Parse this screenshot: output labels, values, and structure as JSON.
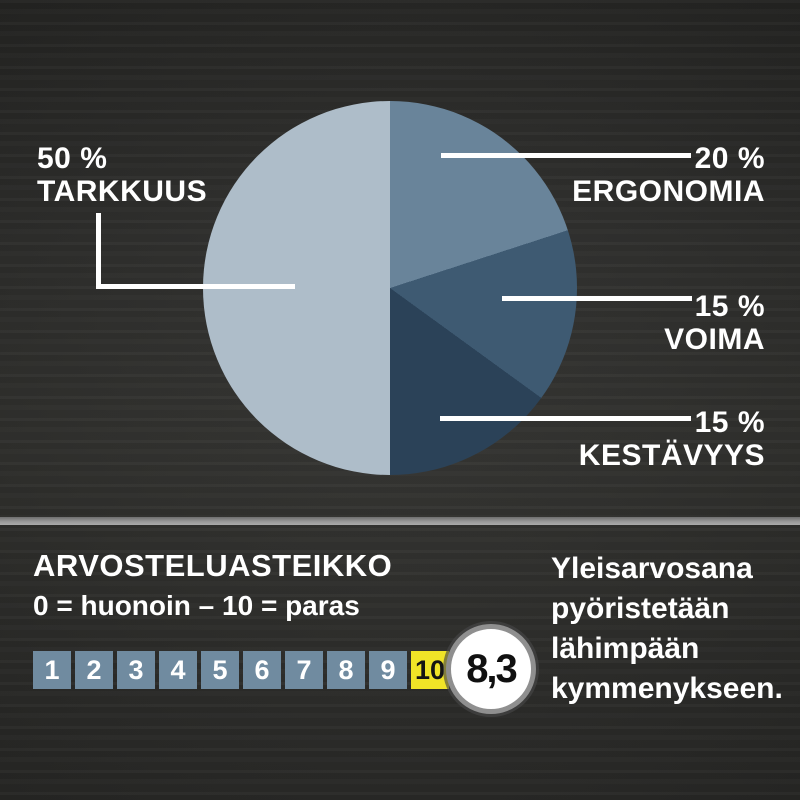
{
  "chart_data": {
    "type": "pie",
    "title": "",
    "start_angle_deg": 180,
    "direction": "clockwise",
    "slices": [
      {
        "label": "TARKKUUS",
        "value": 50,
        "display": "50 %",
        "color": "#aebdc9"
      },
      {
        "label": "ERGONOMIA",
        "value": 20,
        "display": "20 %",
        "color": "#69849a"
      },
      {
        "label": "VOIMA",
        "value": 15,
        "display": "15 %",
        "color": "#3e5a72"
      },
      {
        "label": "KESTÄVYYS",
        "value": 15,
        "display": "15 %",
        "color": "#2b4258"
      }
    ],
    "legend_position": "callout-labels"
  },
  "rating": {
    "heading": "ARVOSTELUASTEIKKO",
    "subtitle": "0 = huonoin – 10 = paras",
    "scale": [
      "1",
      "2",
      "3",
      "4",
      "5",
      "6",
      "7",
      "8",
      "9",
      "10"
    ],
    "highlighted_value": "10",
    "score": "8,3",
    "note": "Yleisarvosana pyöristetään lähimpään kymmenykseen.",
    "note_lines": [
      "Yleisarvosana",
      "pyöristetään",
      "lähimpään",
      "kymmenykseen."
    ]
  },
  "colors": {
    "background": "#2c2c2a",
    "label_text": "#ffffff",
    "callout_line": "#ffffff",
    "divider": "#9b9b9b",
    "scale_box": "#708ba0",
    "scale_box_highlight": "#f0e427",
    "score_circle_fill": "#ffffff",
    "score_circle_ring": "#8f8f8f",
    "score_text": "#101010"
  }
}
